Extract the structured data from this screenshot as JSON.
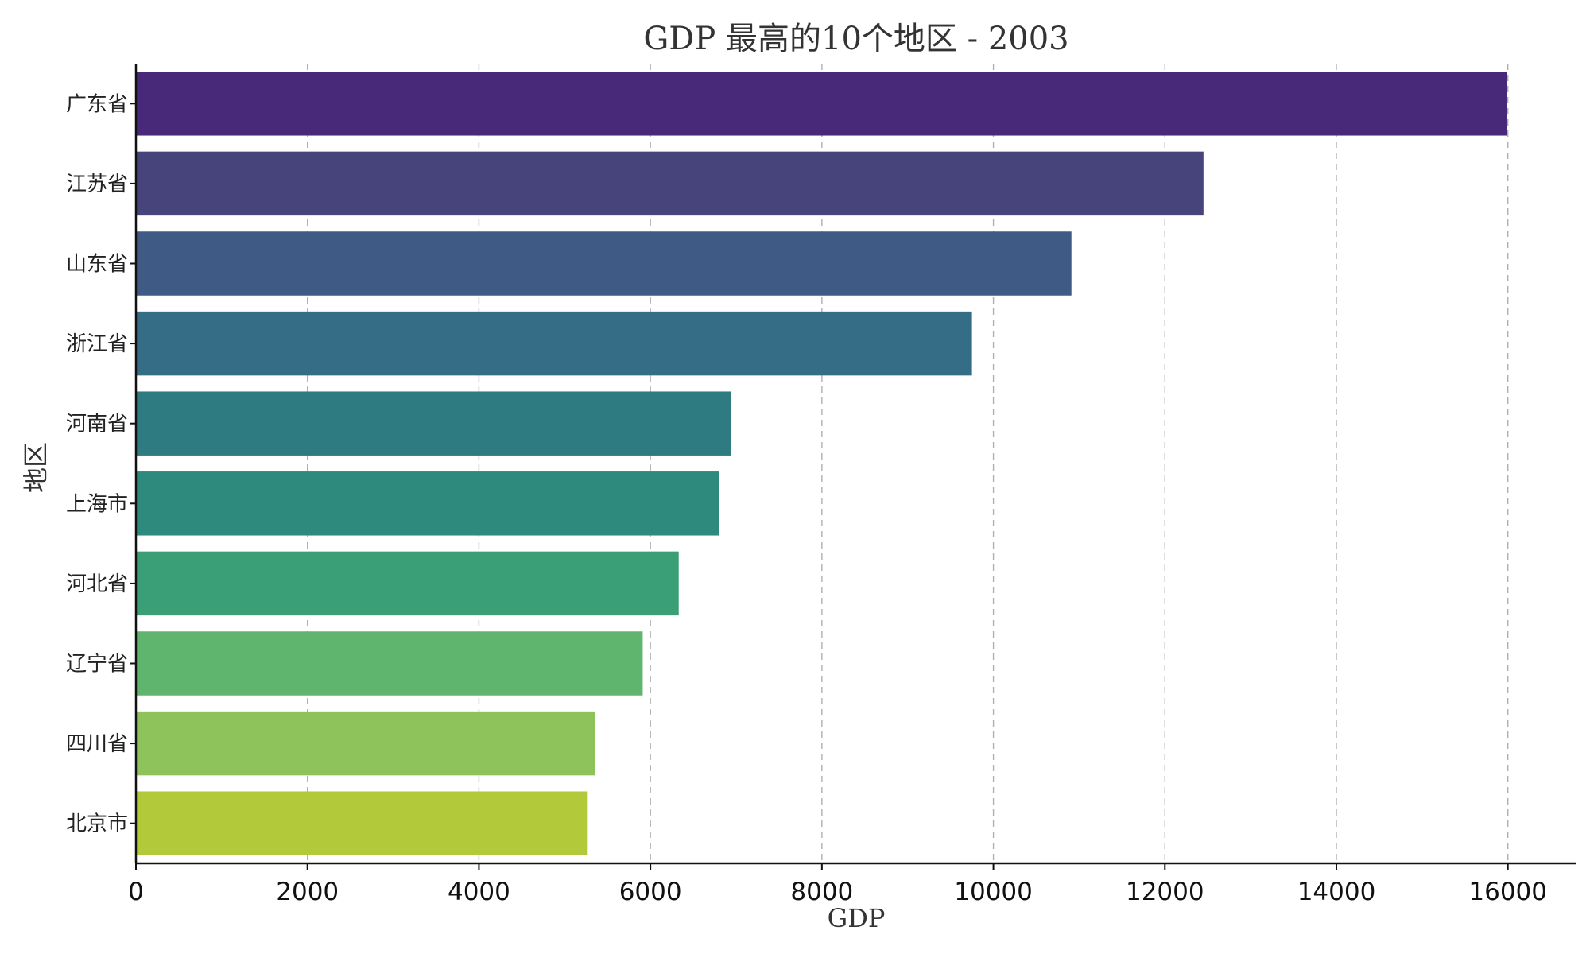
{
  "chart_data": {
    "type": "bar",
    "orientation": "horizontal",
    "title": "GDP 最高的10个地区 - 2003",
    "xlabel": "GDP",
    "ylabel": "地区",
    "categories": [
      "广东省",
      "江苏省",
      "山东省",
      "浙江省",
      "河南省",
      "上海市",
      "河北省",
      "辽宁省",
      "四川省",
      "北京市"
    ],
    "values": [
      15990,
      12450,
      10910,
      9750,
      6940,
      6800,
      6330,
      5910,
      5350,
      5260
    ],
    "colors": [
      "#482878",
      "#46447b",
      "#3e5a85",
      "#366d86",
      "#2e7c82",
      "#2d8a7c",
      "#3a9e76",
      "#60b56e",
      "#8dc35a",
      "#b2c93a"
    ],
    "xlim": [
      0,
      16800
    ],
    "xticks": [
      0,
      2000,
      4000,
      6000,
      8000,
      10000,
      12000,
      14000,
      16000
    ],
    "grid": "x-dashed",
    "legend": "none"
  }
}
